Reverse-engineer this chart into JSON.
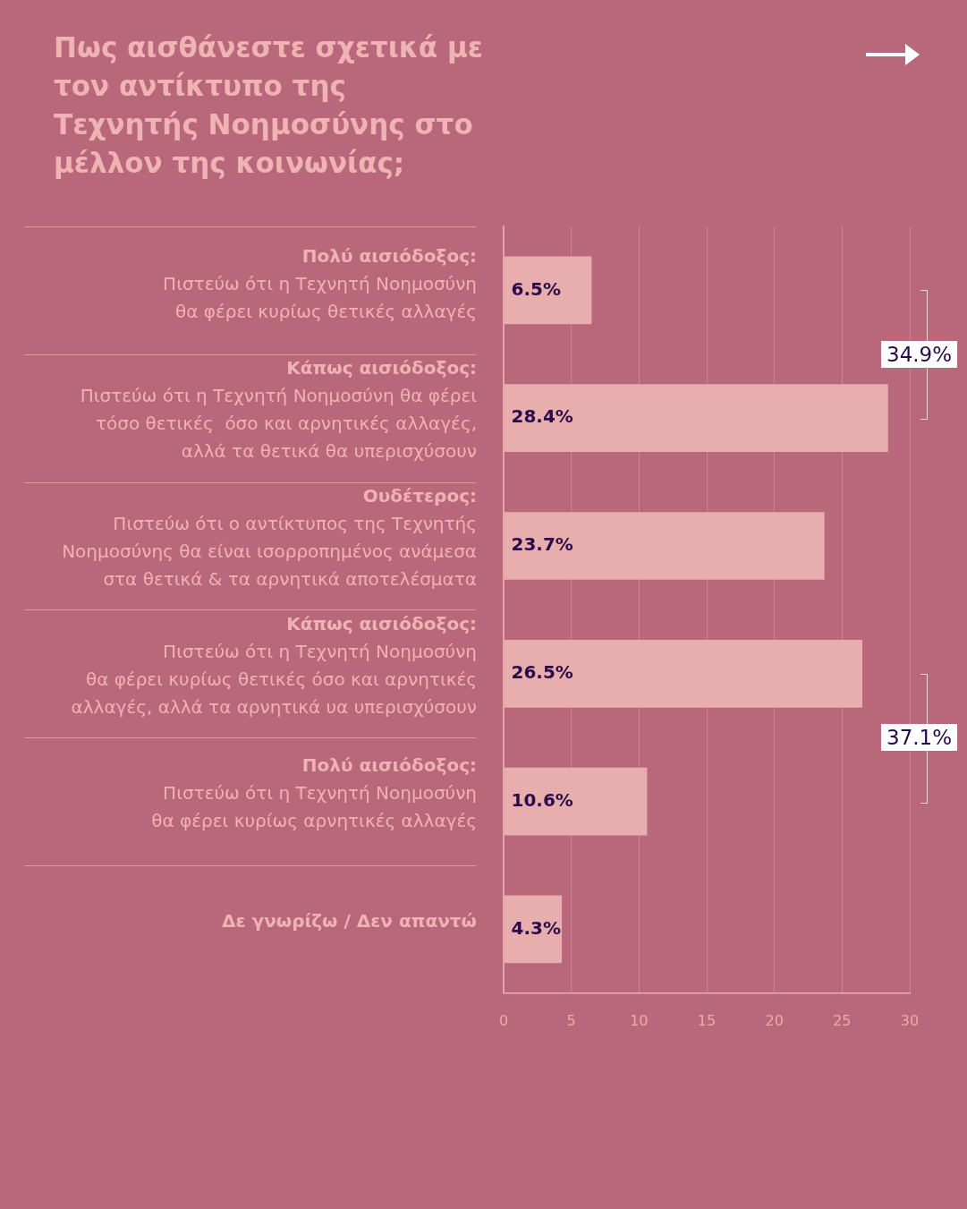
{
  "chart_data": {
    "type": "bar",
    "orientation": "horizontal",
    "title": "Πως αισθάνεστε σχετικά με τον αντίκτυπο της Τεχνητής Νοημοσύνης στο μέλλον της κοινωνίας;",
    "categories": [
      "Πολύ αισιόδοξος:\nΠιστεύω ότι η Τεχνητή Νοημοσύνη\nθα φέρει κυρίως θετικές αλλαγές",
      "Κάπως αισιόδοξος:\nΠιστεύω ότι η Τεχνητή Νοημοσύνη θα φέρει\nτόσο θετικές  όσο και αρνητικές αλλαγές,\nαλλά τα θετικά θα υπερισχύσουν",
      "Ουδέτερος:\nΠιστεύω ότι ο αντίκτυπος της Τεχνητής\nΝοημοσύνης θα είναι ισορροπημένος ανάμεσα\nστα θετικά & τα αρνητικά αποτελέσματα",
      "Κάπως αισιόδοξος:\nΠιστεύω ότι η Τεχνητή Νοημοσύνη\nθα φέρει κυρίως θετικές όσο και αρνητικές\nαλλαγές, αλλά τα αρνητικά υα υπερισχύσουν",
      "Πολύ αισιόδοξος:\nΠιστεύω ότι η Τεχνητή Νοημοσύνη\nθα φέρει κυρίως αρνητικές αλλαγές",
      "Δε γνωρίζω / Δεν απαντώ"
    ],
    "values": [
      6.5,
      28.4,
      23.7,
      26.5,
      10.6,
      4.3
    ],
    "value_labels": [
      "6.5%",
      "28.4%",
      "23.7%",
      "26.5%",
      "10.6%",
      "4.3%"
    ],
    "color": "#e8aeae",
    "xlim": [
      0,
      30
    ],
    "xticks": [
      0,
      5,
      10,
      15,
      20,
      25,
      30
    ],
    "grid": "x",
    "legend": false,
    "annotations": [
      "34.9%",
      "37.1%"
    ]
  }
}
